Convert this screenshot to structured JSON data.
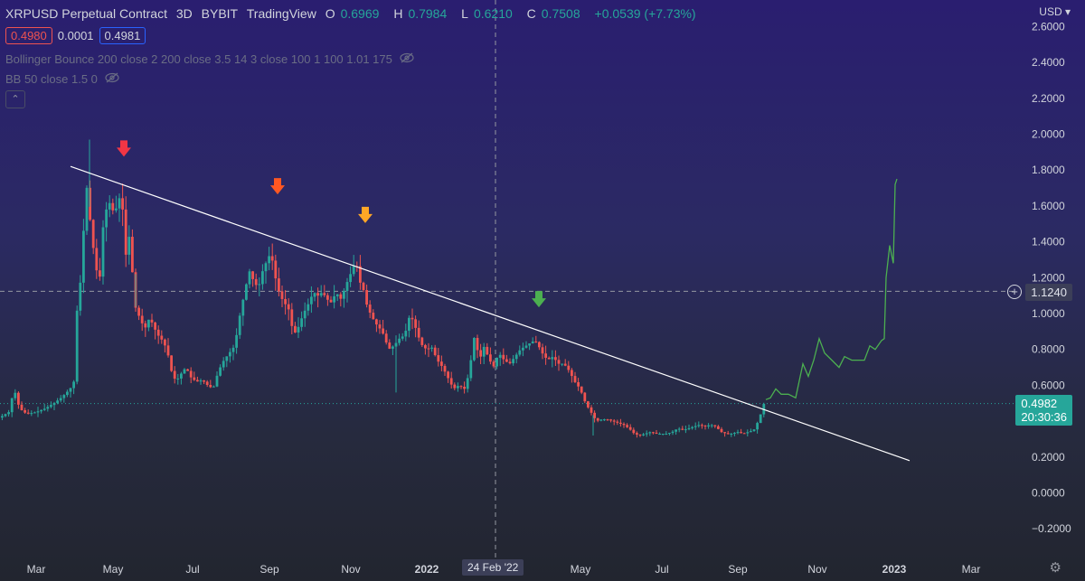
{
  "legend": {
    "symbol": "XRPUSD Perpetual Contract",
    "interval": "3D",
    "exchange": "BYBIT",
    "source": "TradingView",
    "o_key": "O",
    "o": "0.6969",
    "h_key": "H",
    "h": "0.7984",
    "l_key": "L",
    "l": "0.6210",
    "c_key": "C",
    "c": "0.7508",
    "change": "+0.0539 (+7.73%)"
  },
  "trade": {
    "sell": "0.4980",
    "spread": "0.0001",
    "buy": "0.4981"
  },
  "indicators": [
    "Bollinger Bounce 200 close 2 200 close 3.5 14 3 close 100 1 100 1.01 175",
    "BB 50 close 1.5 0"
  ],
  "collapse_glyph": "⌃",
  "currency": "USD",
  "currency_caret": "▾",
  "crosshair_price": "1.1240",
  "crosshair_date": "24 Feb '22",
  "last_price": "0.4982",
  "countdown": "20:30:36",
  "plus_glyph": "+",
  "gear_glyph": "⚙",
  "colors": {
    "up": "#26a69a",
    "down": "#ef5350",
    "trendline": "#ffffff",
    "projection": "#4caf50",
    "arrow_red": "#f23645",
    "arrow_orange": "#ff5722",
    "arrow_amber": "#ffa726",
    "arrow_green": "#4caf50"
  },
  "chart_data": {
    "type": "candlestick",
    "x_tick_labels": [
      "Mar",
      "May",
      "Jul",
      "Sep",
      "Nov",
      "2022",
      "May",
      "Jul",
      "Sep",
      "Nov",
      "2023",
      "Mar"
    ],
    "y_tick_labels": [
      "2.6000",
      "2.4000",
      "2.2000",
      "2.0000",
      "1.8000",
      "1.6000",
      "1.4000",
      "1.2000",
      "1.0000",
      "0.8000",
      "0.6000",
      "0.4000",
      "0.2000",
      "0.0000",
      "−0.2000"
    ],
    "y_ticks": [
      2.6,
      2.4,
      2.2,
      2.0,
      1.8,
      1.6,
      1.4,
      1.2,
      1.0,
      0.8,
      0.6,
      0.4,
      0.2,
      0.0,
      -0.2
    ],
    "ylim": [
      -0.26,
      2.66
    ],
    "last_price": 0.4982,
    "crosshair": {
      "price": 1.124,
      "date": "24 Feb '22"
    },
    "close_path": [
      [
        0,
        0.42
      ],
      [
        10,
        0.45
      ],
      [
        16,
        0.58
      ],
      [
        22,
        0.47
      ],
      [
        30,
        0.44
      ],
      [
        40,
        0.45
      ],
      [
        50,
        0.47
      ],
      [
        60,
        0.5
      ],
      [
        68,
        0.53
      ],
      [
        78,
        0.58
      ],
      [
        82,
        0.62
      ],
      [
        86,
        1.06
      ],
      [
        90,
        1.2
      ],
      [
        93,
        1.48
      ],
      [
        97,
        1.74
      ],
      [
        101,
        1.45
      ],
      [
        105,
        1.32
      ],
      [
        110,
        1.14
      ],
      [
        114,
        1.47
      ],
      [
        118,
        1.58
      ],
      [
        122,
        1.62
      ],
      [
        127,
        1.55
      ],
      [
        132,
        1.65
      ],
      [
        136,
        1.58
      ],
      [
        140,
        1.3
      ],
      [
        144,
        1.46
      ],
      [
        149,
        1.05
      ],
      [
        153,
        1.0
      ],
      [
        157,
        0.95
      ],
      [
        161,
        0.92
      ],
      [
        166,
        0.98
      ],
      [
        170,
        0.93
      ],
      [
        175,
        0.88
      ],
      [
        180,
        0.85
      ],
      [
        185,
        0.8
      ],
      [
        190,
        0.68
      ],
      [
        195,
        0.62
      ],
      [
        200,
        0.66
      ],
      [
        206,
        0.7
      ],
      [
        212,
        0.64
      ],
      [
        218,
        0.62
      ],
      [
        224,
        0.63
      ],
      [
        230,
        0.6
      ],
      [
        236,
        0.58
      ],
      [
        242,
        0.68
      ],
      [
        248,
        0.74
      ],
      [
        254,
        0.78
      ],
      [
        260,
        0.82
      ],
      [
        266,
        1.0
      ],
      [
        271,
        1.12
      ],
      [
        276,
        1.24
      ],
      [
        281,
        1.18
      ],
      [
        286,
        1.14
      ],
      [
        291,
        1.24
      ],
      [
        296,
        1.3
      ],
      [
        300,
        1.34
      ],
      [
        305,
        1.2
      ],
      [
        310,
        1.1
      ],
      [
        315,
        1.06
      ],
      [
        320,
        1.02
      ],
      [
        325,
        0.88
      ],
      [
        330,
        0.92
      ],
      [
        336,
        1.0
      ],
      [
        342,
        1.06
      ],
      [
        347,
        1.12
      ],
      [
        352,
        1.1
      ],
      [
        357,
        1.12
      ],
      [
        362,
        1.08
      ],
      [
        367,
        1.06
      ],
      [
        372,
        1.12
      ],
      [
        377,
        1.08
      ],
      [
        382,
        1.14
      ],
      [
        386,
        1.2
      ],
      [
        390,
        1.24
      ],
      [
        394,
        1.3
      ],
      [
        398,
        1.18
      ],
      [
        402,
        1.14
      ],
      [
        406,
        1.05
      ],
      [
        410,
        1.0
      ],
      [
        415,
        0.95
      ],
      [
        420,
        0.92
      ],
      [
        425,
        0.88
      ],
      [
        430,
        0.8
      ],
      [
        436,
        0.82
      ],
      [
        442,
        0.86
      ],
      [
        448,
        0.88
      ],
      [
        454,
        1.0
      ],
      [
        460,
        0.92
      ],
      [
        466,
        0.83
      ],
      [
        472,
        0.8
      ],
      [
        478,
        0.81
      ],
      [
        484,
        0.74
      ],
      [
        490,
        0.7
      ],
      [
        496,
        0.64
      ],
      [
        502,
        0.58
      ],
      [
        508,
        0.6
      ],
      [
        514,
        0.58
      ],
      [
        520,
        0.68
      ],
      [
        524,
        0.88
      ],
      [
        528,
        0.8
      ],
      [
        532,
        0.76
      ],
      [
        536,
        0.82
      ],
      [
        540,
        0.76
      ],
      [
        546,
        0.7
      ],
      [
        552,
        0.78
      ],
      [
        558,
        0.74
      ],
      [
        564,
        0.72
      ],
      [
        570,
        0.76
      ],
      [
        576,
        0.8
      ],
      [
        582,
        0.82
      ],
      [
        588,
        0.84
      ],
      [
        592,
        0.85
      ],
      [
        596,
        0.82
      ],
      [
        600,
        0.78
      ],
      [
        606,
        0.74
      ],
      [
        612,
        0.76
      ],
      [
        618,
        0.72
      ],
      [
        624,
        0.72
      ],
      [
        630,
        0.68
      ],
      [
        636,
        0.62
      ],
      [
        642,
        0.58
      ],
      [
        648,
        0.5
      ],
      [
        654,
        0.45
      ],
      [
        660,
        0.4
      ],
      [
        666,
        0.41
      ],
      [
        672,
        0.41
      ],
      [
        678,
        0.4
      ],
      [
        684,
        0.39
      ],
      [
        690,
        0.38
      ],
      [
        696,
        0.36
      ],
      [
        702,
        0.33
      ],
      [
        708,
        0.32
      ],
      [
        714,
        0.33
      ],
      [
        720,
        0.34
      ],
      [
        726,
        0.33
      ],
      [
        732,
        0.33
      ],
      [
        738,
        0.33
      ],
      [
        744,
        0.34
      ],
      [
        750,
        0.36
      ],
      [
        756,
        0.35
      ],
      [
        762,
        0.36
      ],
      [
        768,
        0.37
      ],
      [
        774,
        0.38
      ],
      [
        780,
        0.37
      ],
      [
        786,
        0.38
      ],
      [
        792,
        0.37
      ],
      [
        798,
        0.34
      ],
      [
        804,
        0.33
      ],
      [
        810,
        0.33
      ],
      [
        816,
        0.34
      ],
      [
        822,
        0.33
      ],
      [
        828,
        0.34
      ],
      [
        834,
        0.35
      ],
      [
        840,
        0.41
      ],
      [
        844,
        0.48
      ],
      [
        847,
        0.52
      ]
    ],
    "trendline": {
      "start": {
        "x": 78,
        "price": 1.82
      },
      "end": {
        "x": 1006,
        "price": 0.18
      }
    },
    "projection_path": [
      [
        847,
        0.52
      ],
      [
        852,
        0.53
      ],
      [
        858,
        0.58
      ],
      [
        864,
        0.55
      ],
      [
        872,
        0.55
      ],
      [
        880,
        0.53
      ],
      [
        888,
        0.72
      ],
      [
        894,
        0.65
      ],
      [
        900,
        0.74
      ],
      [
        906,
        0.86
      ],
      [
        912,
        0.78
      ],
      [
        920,
        0.74
      ],
      [
        928,
        0.7
      ],
      [
        934,
        0.76
      ],
      [
        942,
        0.74
      ],
      [
        950,
        0.74
      ],
      [
        956,
        0.74
      ],
      [
        962,
        0.82
      ],
      [
        968,
        0.8
      ],
      [
        975,
        0.85
      ],
      [
        978,
        0.86
      ],
      [
        980,
        1.2
      ],
      [
        984,
        1.38
      ],
      [
        988,
        1.28
      ],
      [
        990,
        1.72
      ],
      [
        992,
        1.75
      ]
    ],
    "signal_arrows": [
      {
        "x": 137,
        "price": 1.92,
        "color": "arrow_red"
      },
      {
        "x": 307,
        "price": 1.71,
        "color": "arrow_orange"
      },
      {
        "x": 404,
        "price": 1.55,
        "color": "arrow_amber"
      },
      {
        "x": 596,
        "price": 1.08,
        "color": "arrow_green"
      }
    ]
  }
}
